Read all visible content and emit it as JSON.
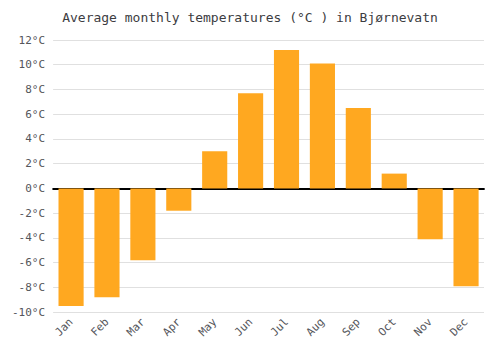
{
  "chart_data": {
    "type": "bar",
    "title": "Average monthly temperatures (°C ) in Bjørnevatn",
    "categories": [
      "Jan",
      "Feb",
      "Mar",
      "Apr",
      "May",
      "Jun",
      "Jul",
      "Aug",
      "Sep",
      "Oct",
      "Nov",
      "Dec"
    ],
    "values": [
      -9.5,
      -8.8,
      -5.8,
      -1.8,
      3.0,
      7.7,
      11.2,
      10.1,
      6.5,
      1.2,
      -4.1,
      -7.9
    ],
    "color": "#FFA820",
    "ylim": [
      -10,
      12
    ],
    "yticks": [
      {
        "value": -10,
        "label": "-10°C"
      },
      {
        "value": -8,
        "label": "-8°C"
      },
      {
        "value": -6,
        "label": "-6°C"
      },
      {
        "value": -4,
        "label": "-4°C"
      },
      {
        "value": -2,
        "label": "-2°C"
      },
      {
        "value": 0,
        "label": "0°C"
      },
      {
        "value": 2,
        "label": "2°C"
      },
      {
        "value": 4,
        "label": "4°C"
      },
      {
        "value": 6,
        "label": "6°C"
      },
      {
        "value": 8,
        "label": "8°C"
      },
      {
        "value": 10,
        "label": "10°C"
      },
      {
        "value": 12,
        "label": "12°C"
      }
    ],
    "grid": true
  }
}
